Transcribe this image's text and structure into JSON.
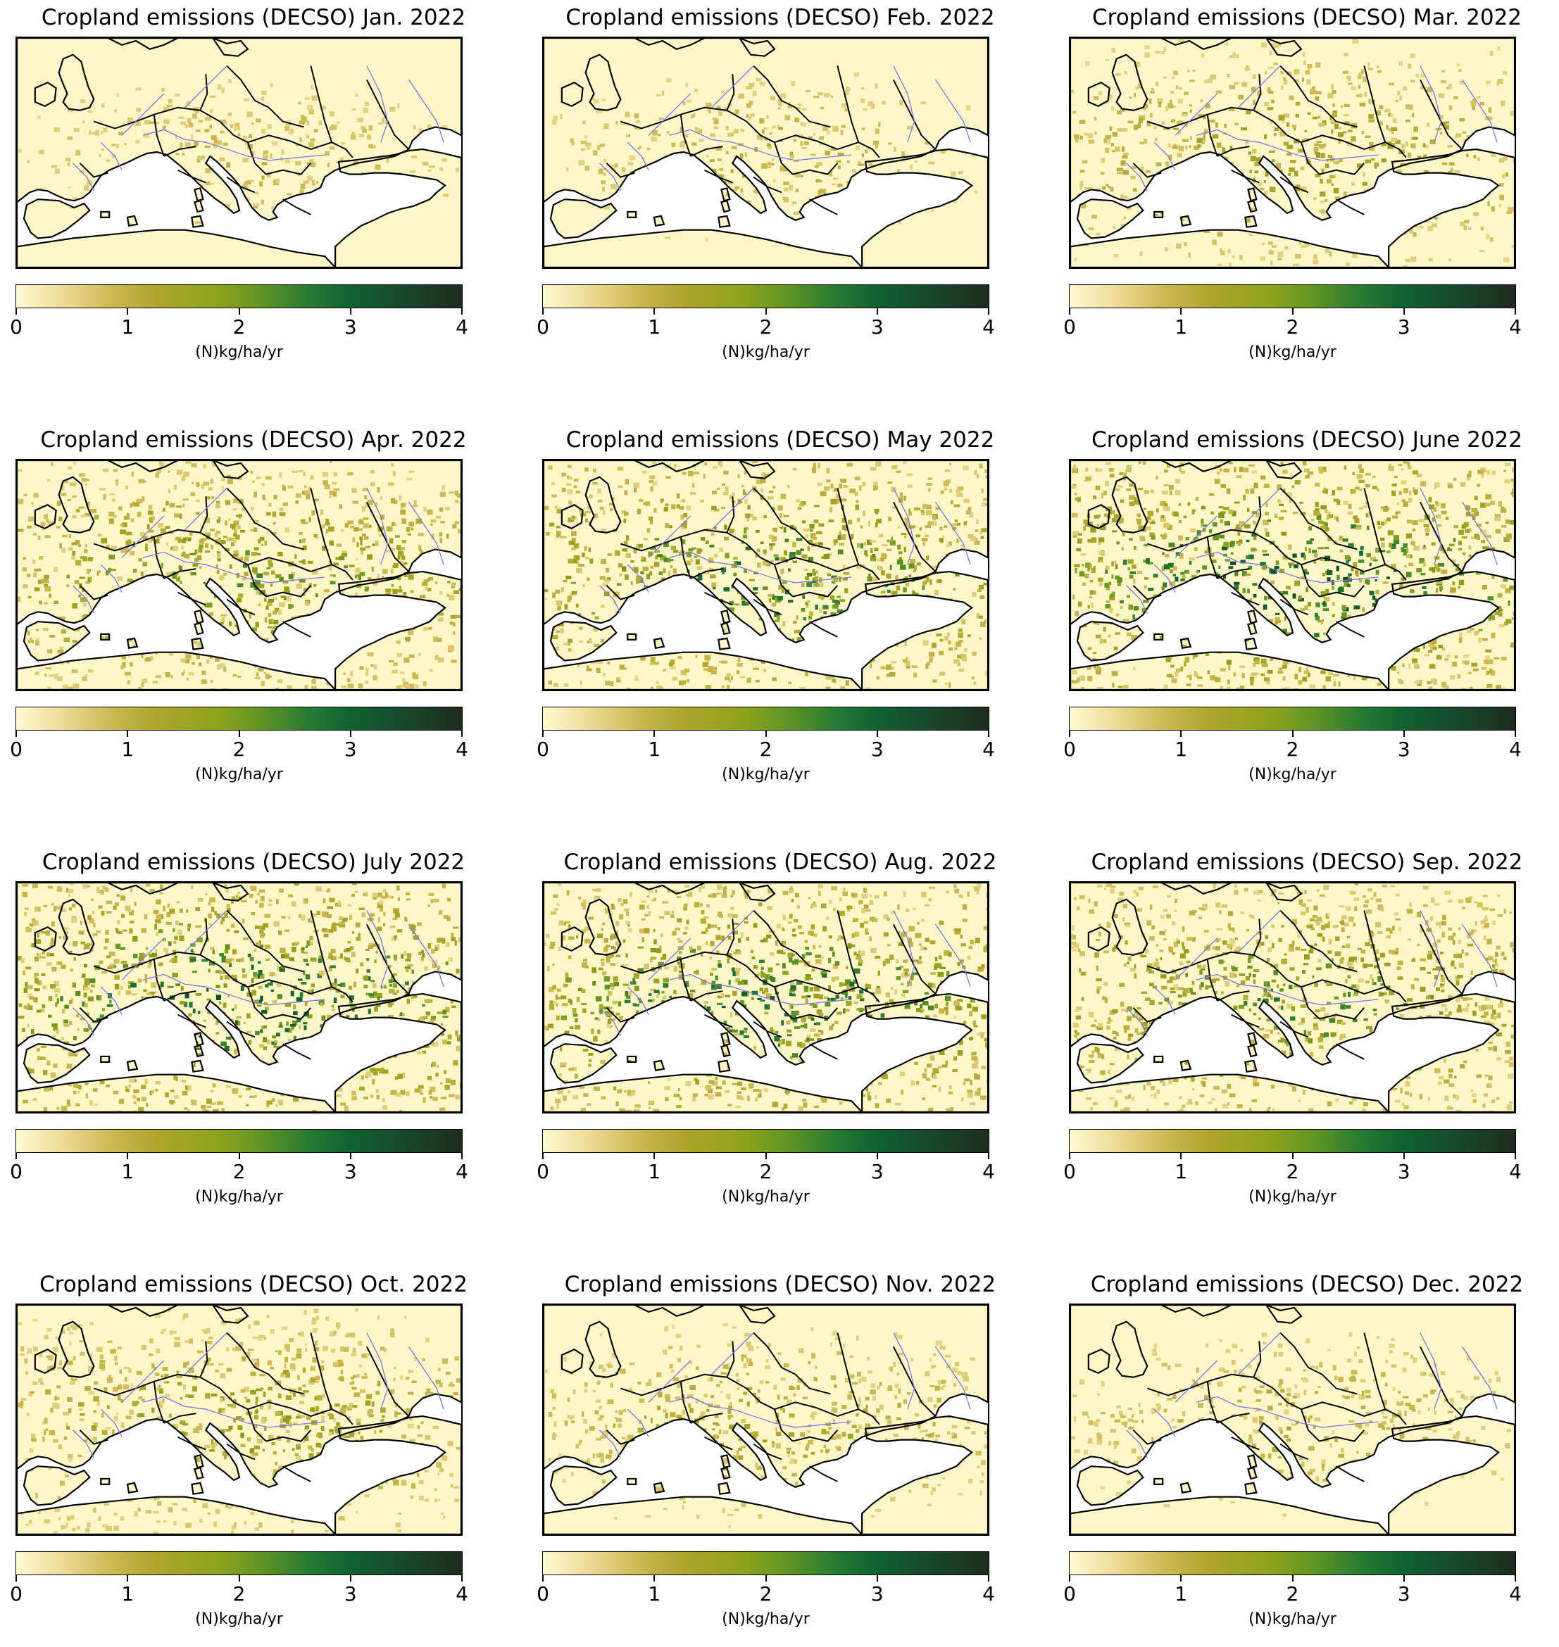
{
  "colormap": {
    "ticks": [
      "0",
      "1",
      "2",
      "3",
      "4"
    ],
    "unit": "(N)kg/ha/yr",
    "stops": [
      "#fffad0",
      "#eedc98",
      "#c9b850",
      "#ada42c",
      "#8fa31c",
      "#5f9424",
      "#257a33",
      "#0e6232",
      "#174a2c",
      "#1e2b1c"
    ],
    "land_low_color": "#fff7c8",
    "border_color": "#000000",
    "river_color": "#7777ee"
  },
  "panels": [
    {
      "title": "Cropland emissions (DECSO) Jan. 2022",
      "intensity": 0.25
    },
    {
      "title": "Cropland emissions (DECSO) Feb. 2022",
      "intensity": 0.28
    },
    {
      "title": "Cropland emissions (DECSO) Mar. 2022",
      "intensity": 0.42
    },
    {
      "title": "Cropland emissions (DECSO) Apr. 2022",
      "intensity": 0.58
    },
    {
      "title": "Cropland emissions (DECSO) May 2022",
      "intensity": 0.7
    },
    {
      "title": "Cropland emissions (DECSO) June 2022",
      "intensity": 0.85
    },
    {
      "title": "Cropland emissions (DECSO) July 2022",
      "intensity": 0.82
    },
    {
      "title": "Cropland emissions (DECSO) Aug. 2022",
      "intensity": 0.75
    },
    {
      "title": "Cropland emissions (DECSO) Sep. 2022",
      "intensity": 0.62
    },
    {
      "title": "Cropland emissions (DECSO) Oct. 2022",
      "intensity": 0.45
    },
    {
      "title": "Cropland emissions (DECSO) Nov. 2022",
      "intensity": 0.35
    },
    {
      "title": "Cropland emissions (DECSO) Dec. 2022",
      "intensity": 0.3
    }
  ]
}
